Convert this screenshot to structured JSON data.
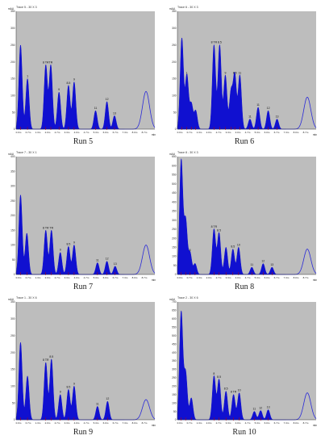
{
  "chart_data": [
    {
      "type": "area",
      "title": "Run 5",
      "trace_label": "Trace 5 - 30 X 3",
      "yunit": "mAU",
      "xunit": "min",
      "ylim": [
        0,
        350
      ],
      "xlim": [
        0,
        11
      ],
      "y_ticks": [
        "350",
        "300",
        "250",
        "200",
        "150",
        "100",
        "50",
        "0"
      ],
      "x_ticks": [
        "0.0m",
        "0.7m",
        "1.3m",
        "2.0m",
        "2.7m",
        "3.3m",
        "4.0m",
        "4.7m",
        "5.3m",
        "6.0m",
        "6.7m",
        "7.3m",
        "8.0m",
        "8.7m"
      ],
      "grid": false,
      "peaks": [
        {
          "rt": 0.35,
          "height": 250,
          "label": ""
        },
        {
          "rt": 0.9,
          "height": 150,
          "label": "1"
        },
        {
          "rt": 2.35,
          "height": 190,
          "label": "8 TR"
        },
        {
          "rt": 2.75,
          "height": 190,
          "label": "TR"
        },
        {
          "rt": 3.4,
          "height": 110,
          "label": "9"
        },
        {
          "rt": 4.15,
          "height": 130,
          "label": "8.5"
        },
        {
          "rt": 4.6,
          "height": 140,
          "label": "9"
        },
        {
          "rt": 6.3,
          "height": 55,
          "label": "11"
        },
        {
          "rt": 7.2,
          "height": 82,
          "label": "12"
        },
        {
          "rt": 7.8,
          "height": 40,
          "label": "13"
        }
      ],
      "tail_rt": 10.3,
      "tail_height": 112
    },
    {
      "type": "area",
      "title": "Run 6",
      "trace_label": "Trace 6 - 30 X 3",
      "yunit": "mAU",
      "xunit": "min",
      "ylim": [
        0,
        350
      ],
      "xlim": [
        0,
        11
      ],
      "y_ticks": [
        "350",
        "300",
        "250",
        "200",
        "150",
        "100",
        "50",
        "0"
      ],
      "x_ticks": [
        "0.0m",
        "0.7m",
        "1.3m",
        "2.0m",
        "2.7m",
        "3.3m",
        "4.0m",
        "4.7m",
        "5.3m",
        "6.0m",
        "6.7m",
        "7.3m",
        "8.0m",
        "8.7m"
      ],
      "grid": false,
      "peaks": [
        {
          "rt": 0.35,
          "height": 270,
          "label": ""
        },
        {
          "rt": 0.75,
          "height": 160,
          "label": "1"
        },
        {
          "rt": 1.1,
          "height": 75,
          "label": ""
        },
        {
          "rt": 1.45,
          "height": 55,
          "label": ""
        },
        {
          "rt": 2.9,
          "height": 250,
          "label": "8 TR"
        },
        {
          "rt": 3.35,
          "height": 250,
          "label": "8.5"
        },
        {
          "rt": 3.8,
          "height": 160,
          "label": "9"
        },
        {
          "rt": 4.25,
          "height": 110,
          "label": ""
        },
        {
          "rt": 4.55,
          "height": 160,
          "label": "8.5"
        },
        {
          "rt": 4.95,
          "height": 160,
          "label": "11"
        },
        {
          "rt": 5.75,
          "height": 30,
          "label": "11"
        },
        {
          "rt": 6.4,
          "height": 65,
          "label": "11"
        },
        {
          "rt": 7.2,
          "height": 55,
          "label": "12"
        },
        {
          "rt": 7.9,
          "height": 30,
          "label": "13"
        }
      ],
      "tail_rt": 10.3,
      "tail_height": 95
    },
    {
      "type": "area",
      "title": "Run 7",
      "trace_label": "Trace 7 - 30 X 1",
      "yunit": "mAU",
      "xunit": "min",
      "ylim": [
        0,
        400
      ],
      "xlim": [
        0,
        11
      ],
      "y_ticks": [
        "400",
        "350",
        "300",
        "250",
        "200",
        "150",
        "100",
        "50",
        "0"
      ],
      "x_ticks": [
        "0.0m",
        "0.7m",
        "1.3m",
        "2.0m",
        "2.7m",
        "3.3m",
        "4.0m",
        "4.7m",
        "5.3m",
        "6.0m",
        "6.7m",
        "7.3m",
        "8.0m",
        "8.7m"
      ],
      "grid": false,
      "peaks": [
        {
          "rt": 0.35,
          "height": 270,
          "label": ""
        },
        {
          "rt": 0.85,
          "height": 140,
          "label": ""
        },
        {
          "rt": 2.35,
          "height": 150,
          "label": "8 TR"
        },
        {
          "rt": 2.8,
          "height": 150,
          "label": "TR"
        },
        {
          "rt": 3.5,
          "height": 75,
          "label": "9"
        },
        {
          "rt": 4.15,
          "height": 95,
          "label": "8.5"
        },
        {
          "rt": 4.6,
          "height": 100,
          "label": "9"
        },
        {
          "rt": 6.45,
          "height": 40,
          "label": "11"
        },
        {
          "rt": 7.2,
          "height": 45,
          "label": "12"
        },
        {
          "rt": 7.85,
          "height": 28,
          "label": "13"
        }
      ],
      "tail_rt": 10.3,
      "tail_height": 100
    },
    {
      "type": "area",
      "title": "Run 8",
      "trace_label": "Trace 8 - 30 X 3",
      "yunit": "mAU",
      "xunit": "min",
      "ylim": [
        0,
        650
      ],
      "xlim": [
        0,
        11
      ],
      "y_ticks": [
        "650",
        "600",
        "550",
        "500",
        "450",
        "400",
        "350",
        "300",
        "250",
        "200",
        "150",
        "100",
        "50",
        "0"
      ],
      "x_ticks": [
        "0.0m",
        "0.7m",
        "1.3m",
        "2.0m",
        "2.7m",
        "3.3m",
        "4.0m",
        "4.7m",
        "5.3m",
        "6.0m",
        "6.7m",
        "7.3m",
        "8.0m",
        "8.7m"
      ],
      "grid": false,
      "peaks": [
        {
          "rt": 0.3,
          "height": 630,
          "label": ""
        },
        {
          "rt": 0.65,
          "height": 300,
          "label": ""
        },
        {
          "rt": 1.0,
          "height": 120,
          "label": "5"
        },
        {
          "rt": 1.4,
          "height": 60,
          "label": ""
        },
        {
          "rt": 2.9,
          "height": 250,
          "label": "8 TR"
        },
        {
          "rt": 3.3,
          "height": 230,
          "label": "8.5"
        },
        {
          "rt": 3.85,
          "height": 150,
          "label": ""
        },
        {
          "rt": 4.4,
          "height": 140,
          "label": "8.5"
        },
        {
          "rt": 4.85,
          "height": 150,
          "label": "10"
        },
        {
          "rt": 5.9,
          "height": 40,
          "label": "11"
        },
        {
          "rt": 6.8,
          "height": 60,
          "label": "12"
        },
        {
          "rt": 7.5,
          "height": 40,
          "label": "13"
        }
      ],
      "tail_rt": 10.3,
      "tail_height": 140
    },
    {
      "type": "area",
      "title": "Run 9",
      "trace_label": "Trace 1 - 30 X 6",
      "yunit": "mAU",
      "xunit": "min",
      "ylim": [
        0,
        350
      ],
      "xlim": [
        0,
        11
      ],
      "y_ticks": [
        "350",
        "300",
        "250",
        "200",
        "150",
        "100",
        "50",
        "0"
      ],
      "x_ticks": [
        "0.0m",
        "0.7m",
        "1.3m",
        "2.0m",
        "2.7m",
        "3.3m",
        "4.0m",
        "4.7m",
        "5.3m",
        "6.0m",
        "6.7m",
        "7.3m",
        "8.0m",
        "8.7m"
      ],
      "grid": false,
      "peaks": [
        {
          "rt": 0.35,
          "height": 230,
          "label": ""
        },
        {
          "rt": 0.9,
          "height": 130,
          "label": ""
        },
        {
          "rt": 2.35,
          "height": 170,
          "label": "8 TR"
        },
        {
          "rt": 2.8,
          "height": 180,
          "label": "8.5"
        },
        {
          "rt": 3.5,
          "height": 75,
          "label": "9"
        },
        {
          "rt": 4.15,
          "height": 90,
          "label": "8.5"
        },
        {
          "rt": 4.6,
          "height": 100,
          "label": "9"
        },
        {
          "rt": 6.45,
          "height": 40,
          "label": "11"
        },
        {
          "rt": 7.25,
          "height": 55,
          "label": "12"
        }
      ],
      "tail_rt": 10.3,
      "tail_height": 60
    },
    {
      "type": "area",
      "title": "Run 10",
      "trace_label": "Trace 2 - 30 X 6",
      "yunit": "mAU",
      "xunit": "min",
      "ylim": [
        0,
        700
      ],
      "xlim": [
        0,
        11
      ],
      "y_ticks": [
        "700",
        "650",
        "600",
        "550",
        "500",
        "450",
        "400",
        "350",
        "300",
        "250",
        "200",
        "150",
        "100",
        "50",
        "0"
      ],
      "x_ticks": [
        "0.0m",
        "0.7m",
        "1.3m",
        "2.0m",
        "2.7m",
        "3.3m",
        "4.0m",
        "4.7m",
        "5.3m",
        "6.0m",
        "6.7m",
        "7.3m",
        "8.0m",
        "8.7m"
      ],
      "grid": false,
      "peaks": [
        {
          "rt": 0.3,
          "height": 640,
          "label": ""
        },
        {
          "rt": 0.65,
          "height": 280,
          "label": ""
        },
        {
          "rt": 1.1,
          "height": 130,
          "label": ""
        },
        {
          "rt": 2.9,
          "height": 260,
          "label": "8"
        },
        {
          "rt": 3.3,
          "height": 240,
          "label": "8.5"
        },
        {
          "rt": 3.85,
          "height": 170,
          "label": "8.5"
        },
        {
          "rt": 4.45,
          "height": 150,
          "label": "8 TR"
        },
        {
          "rt": 4.9,
          "height": 160,
          "label": "10"
        },
        {
          "rt": 6.1,
          "height": 50,
          "label": "11"
        },
        {
          "rt": 6.6,
          "height": 55,
          "label": "12"
        },
        {
          "rt": 7.2,
          "height": 60,
          "label": "13"
        }
      ],
      "tail_rt": 10.3,
      "tail_height": 160
    }
  ]
}
